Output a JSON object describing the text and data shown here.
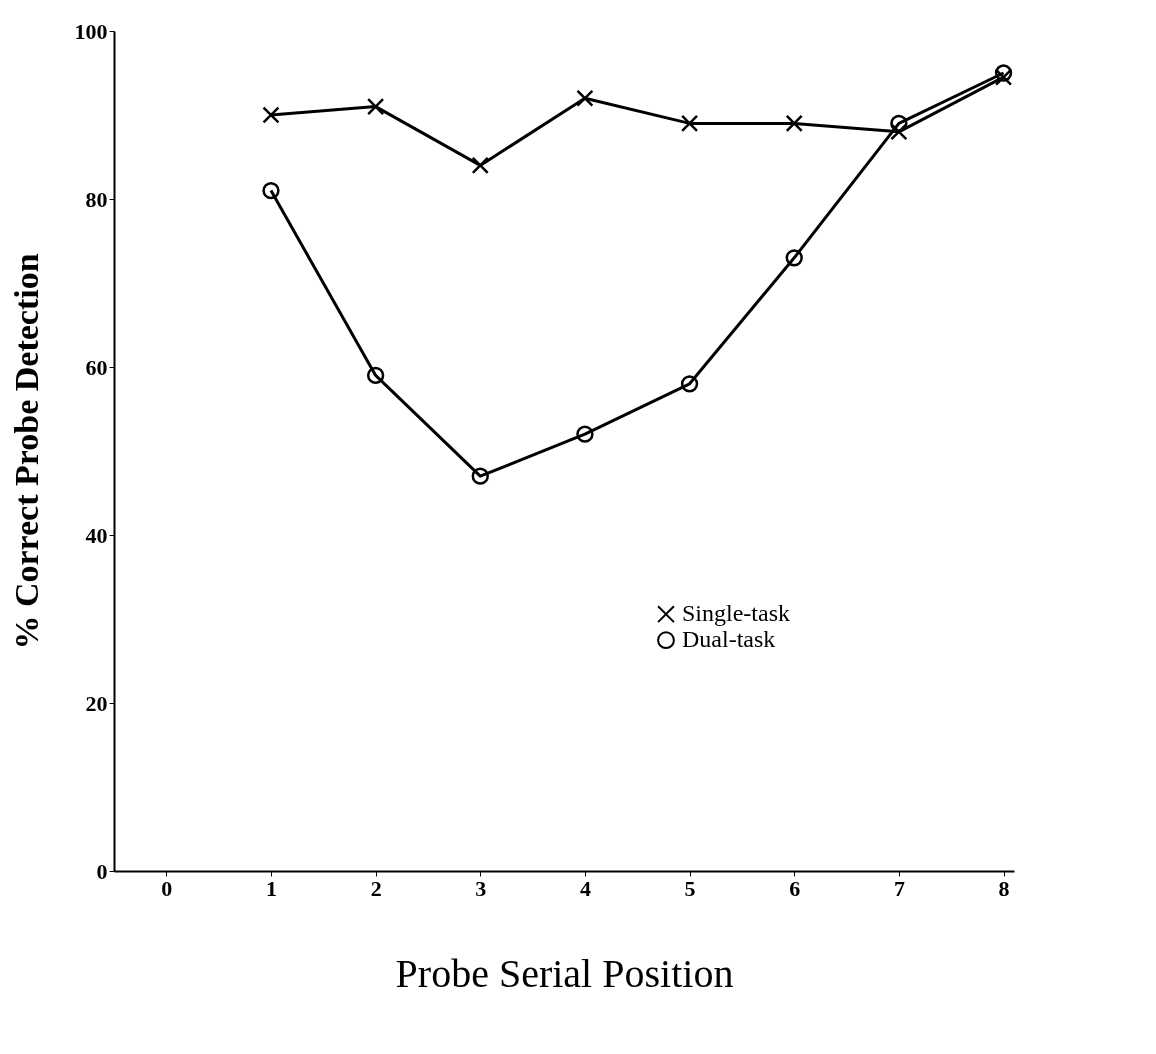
{
  "chart_data": {
    "type": "line",
    "xlabel": "Probe Serial Position",
    "ylabel": "% Correct Probe Detection",
    "x": [
      1,
      2,
      3,
      4,
      5,
      6,
      7,
      8
    ],
    "series": [
      {
        "name": "Single-task",
        "color": "#000000",
        "marker": "cross",
        "values": [
          90,
          91,
          84,
          92,
          89,
          89,
          88,
          94.5
        ]
      },
      {
        "name": "Dual-task",
        "color": "#000000",
        "marker": "circle",
        "values": [
          81,
          59,
          47,
          52,
          58,
          73,
          89,
          95
        ]
      }
    ],
    "xlim": [
      -0.5,
      8.1
    ],
    "xticks": [
      0,
      1,
      2,
      3,
      4,
      5,
      6,
      7,
      8
    ],
    "ylim": [
      0,
      100
    ],
    "yticks": [
      0,
      20,
      40,
      60,
      80,
      100
    ],
    "grid": false,
    "legend": "right",
    "line_style": "solid"
  }
}
